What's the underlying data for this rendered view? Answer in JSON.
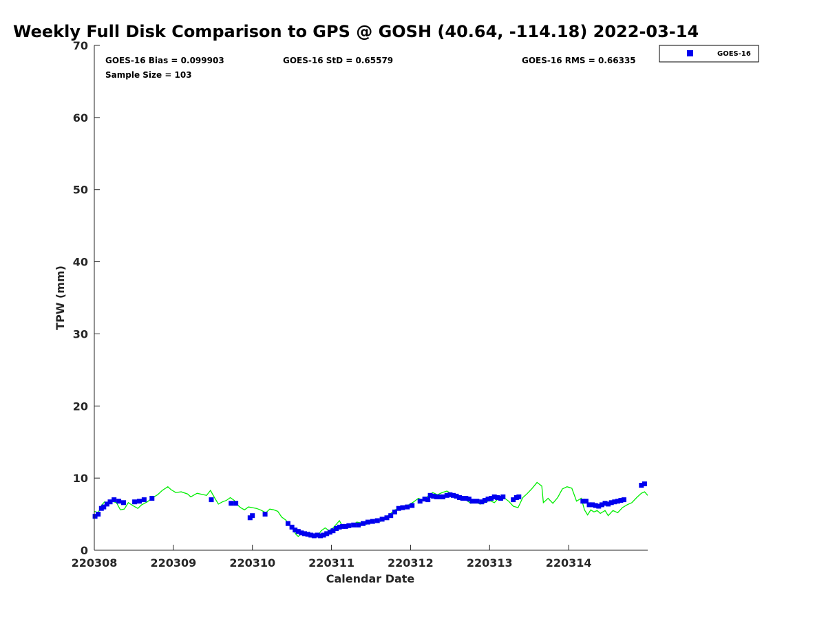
{
  "chart_data": {
    "type": "scatter",
    "title": "Weekly Full Disk Comparison to GPS @ GOSH (40.64, -114.18) 2022-03-14",
    "xlabel": "Calendar Date",
    "ylabel": "TPW (mm)",
    "xlim": [
      0,
      7
    ],
    "ylim": [
      0,
      70
    ],
    "grid": false,
    "x_ticks": [
      {
        "value": 0,
        "label": "220308"
      },
      {
        "value": 1,
        "label": "220309"
      },
      {
        "value": 2,
        "label": "220310"
      },
      {
        "value": 3,
        "label": "220311"
      },
      {
        "value": 4,
        "label": "220312"
      },
      {
        "value": 5,
        "label": "220313"
      },
      {
        "value": 6,
        "label": "220314"
      }
    ],
    "y_ticks": [
      0,
      10,
      20,
      30,
      40,
      50,
      60,
      70
    ],
    "stats": {
      "bias": "GOES-16 Bias = 0.099903",
      "std": "GOES-16 StD = 0.65579",
      "rms": "GOES-16 RMS = 0.66335",
      "sample": "Sample Size = 103"
    },
    "legend": {
      "position": "top-right, outside plot",
      "entries": [
        "GOES-16"
      ]
    },
    "colors": {
      "goes16": "#0000ee",
      "gps": "#00ee00"
    },
    "series": [
      {
        "name": "GOES-16",
        "marker": "square",
        "color": "#0000ee",
        "points": [
          [
            0.01,
            4.7
          ],
          [
            0.05,
            5.0
          ],
          [
            0.09,
            5.8
          ],
          [
            0.12,
            6.0
          ],
          [
            0.16,
            6.4
          ],
          [
            0.2,
            6.7
          ],
          [
            0.25,
            7.0
          ],
          [
            0.31,
            6.8
          ],
          [
            0.37,
            6.6
          ],
          [
            0.51,
            6.7
          ],
          [
            0.57,
            6.8
          ],
          [
            0.63,
            7.0
          ],
          [
            0.73,
            7.2
          ],
          [
            1.48,
            7.0
          ],
          [
            1.73,
            6.5
          ],
          [
            1.79,
            6.5
          ],
          [
            1.97,
            4.5
          ],
          [
            2.0,
            4.8
          ],
          [
            2.16,
            5.0
          ],
          [
            2.45,
            3.7
          ],
          [
            2.5,
            3.2
          ],
          [
            2.54,
            2.8
          ],
          [
            2.58,
            2.6
          ],
          [
            2.62,
            2.4
          ],
          [
            2.66,
            2.3
          ],
          [
            2.7,
            2.2
          ],
          [
            2.74,
            2.1
          ],
          [
            2.78,
            2.0
          ],
          [
            2.82,
            2.1
          ],
          [
            2.86,
            2.0
          ],
          [
            2.9,
            2.1
          ],
          [
            2.94,
            2.3
          ],
          [
            2.98,
            2.5
          ],
          [
            3.02,
            2.7
          ],
          [
            3.06,
            3.0
          ],
          [
            3.1,
            3.2
          ],
          [
            3.14,
            3.3
          ],
          [
            3.18,
            3.3
          ],
          [
            3.22,
            3.4
          ],
          [
            3.28,
            3.5
          ],
          [
            3.34,
            3.5
          ],
          [
            3.4,
            3.7
          ],
          [
            3.46,
            3.9
          ],
          [
            3.52,
            4.0
          ],
          [
            3.58,
            4.1
          ],
          [
            3.64,
            4.3
          ],
          [
            3.7,
            4.5
          ],
          [
            3.75,
            4.8
          ],
          [
            3.8,
            5.3
          ],
          [
            3.85,
            5.8
          ],
          [
            3.9,
            5.9
          ],
          [
            3.96,
            6.0
          ],
          [
            4.02,
            6.2
          ],
          [
            4.12,
            6.8
          ],
          [
            4.18,
            7.1
          ],
          [
            4.22,
            7.0
          ],
          [
            4.25,
            7.6
          ],
          [
            4.29,
            7.5
          ],
          [
            4.33,
            7.4
          ],
          [
            4.37,
            7.4
          ],
          [
            4.41,
            7.4
          ],
          [
            4.46,
            7.6
          ],
          [
            4.5,
            7.7
          ],
          [
            4.54,
            7.6
          ],
          [
            4.58,
            7.5
          ],
          [
            4.62,
            7.3
          ],
          [
            4.66,
            7.2
          ],
          [
            4.7,
            7.2
          ],
          [
            4.74,
            7.1
          ],
          [
            4.78,
            6.8
          ],
          [
            4.84,
            6.8
          ],
          [
            4.9,
            6.7
          ],
          [
            4.94,
            6.9
          ],
          [
            4.98,
            7.1
          ],
          [
            5.02,
            7.2
          ],
          [
            5.06,
            7.4
          ],
          [
            5.1,
            7.3
          ],
          [
            5.14,
            7.2
          ],
          [
            5.17,
            7.4
          ],
          [
            5.3,
            7.0
          ],
          [
            5.34,
            7.3
          ],
          [
            5.37,
            7.4
          ],
          [
            6.18,
            6.8
          ],
          [
            6.22,
            6.8
          ],
          [
            6.26,
            6.3
          ],
          [
            6.3,
            6.3
          ],
          [
            6.34,
            6.2
          ],
          [
            6.38,
            6.1
          ],
          [
            6.42,
            6.3
          ],
          [
            6.46,
            6.5
          ],
          [
            6.5,
            6.4
          ],
          [
            6.54,
            6.6
          ],
          [
            6.58,
            6.7
          ],
          [
            6.62,
            6.8
          ],
          [
            6.66,
            6.9
          ],
          [
            6.7,
            7.0
          ],
          [
            6.92,
            9.0
          ],
          [
            6.96,
            9.2
          ]
        ]
      },
      {
        "name": "GPS",
        "marker": "line",
        "color": "#00ee00",
        "points": [
          [
            0.0,
            5.4
          ],
          [
            0.05,
            5.2
          ],
          [
            0.09,
            6.2
          ],
          [
            0.13,
            6.7
          ],
          [
            0.17,
            6.6
          ],
          [
            0.22,
            6.8
          ],
          [
            0.28,
            6.6
          ],
          [
            0.33,
            5.6
          ],
          [
            0.38,
            5.7
          ],
          [
            0.43,
            6.6
          ],
          [
            0.5,
            6.1
          ],
          [
            0.55,
            5.8
          ],
          [
            0.6,
            6.3
          ],
          [
            0.67,
            6.7
          ],
          [
            0.74,
            7.3
          ],
          [
            0.8,
            7.7
          ],
          [
            0.86,
            8.3
          ],
          [
            0.93,
            8.8
          ],
          [
            0.97,
            8.4
          ],
          [
            1.03,
            8.0
          ],
          [
            1.1,
            8.1
          ],
          [
            1.18,
            7.8
          ],
          [
            1.22,
            7.4
          ],
          [
            1.3,
            7.9
          ],
          [
            1.38,
            7.7
          ],
          [
            1.42,
            7.6
          ],
          [
            1.47,
            8.3
          ],
          [
            1.52,
            7.3
          ],
          [
            1.57,
            6.4
          ],
          [
            1.62,
            6.7
          ],
          [
            1.67,
            6.9
          ],
          [
            1.72,
            7.3
          ],
          [
            1.77,
            6.9
          ],
          [
            1.8,
            6.4
          ],
          [
            1.85,
            5.9
          ],
          [
            1.9,
            5.6
          ],
          [
            1.95,
            6.0
          ],
          [
            2.0,
            5.9
          ],
          [
            2.05,
            5.8
          ],
          [
            2.1,
            5.6
          ],
          [
            2.17,
            5.2
          ],
          [
            2.22,
            5.7
          ],
          [
            2.27,
            5.6
          ],
          [
            2.32,
            5.4
          ],
          [
            2.37,
            4.6
          ],
          [
            2.42,
            4.2
          ],
          [
            2.47,
            3.5
          ],
          [
            2.52,
            2.8
          ],
          [
            2.55,
            2.2
          ],
          [
            2.58,
            1.9
          ],
          [
            2.62,
            2.4
          ],
          [
            2.67,
            2.2
          ],
          [
            2.72,
            2.5
          ],
          [
            2.77,
            1.9
          ],
          [
            2.82,
            1.9
          ],
          [
            2.87,
            2.7
          ],
          [
            2.92,
            3.1
          ],
          [
            2.97,
            2.7
          ],
          [
            3.02,
            3.1
          ],
          [
            3.07,
            3.7
          ],
          [
            3.1,
            4.1
          ],
          [
            3.14,
            3.3
          ],
          [
            3.2,
            3.6
          ],
          [
            3.26,
            3.4
          ],
          [
            3.32,
            3.9
          ],
          [
            3.38,
            3.8
          ],
          [
            3.44,
            3.6
          ],
          [
            3.5,
            4.0
          ],
          [
            3.56,
            4.2
          ],
          [
            3.62,
            4.0
          ],
          [
            3.68,
            4.5
          ],
          [
            3.74,
            5.0
          ],
          [
            3.8,
            5.6
          ],
          [
            3.86,
            5.8
          ],
          [
            3.92,
            6.1
          ],
          [
            3.98,
            6.3
          ],
          [
            4.04,
            6.7
          ],
          [
            4.1,
            7.2
          ],
          [
            4.16,
            6.9
          ],
          [
            4.22,
            7.5
          ],
          [
            4.28,
            8.0
          ],
          [
            4.34,
            7.7
          ],
          [
            4.4,
            8.0
          ],
          [
            4.46,
            8.2
          ],
          [
            4.52,
            7.8
          ],
          [
            4.58,
            7.5
          ],
          [
            4.64,
            7.2
          ],
          [
            4.7,
            7.0
          ],
          [
            4.76,
            6.5
          ],
          [
            4.82,
            6.7
          ],
          [
            4.88,
            6.4
          ],
          [
            4.94,
            6.6
          ],
          [
            5.0,
            6.9
          ],
          [
            5.06,
            6.6
          ],
          [
            5.12,
            7.3
          ],
          [
            5.18,
            7.3
          ],
          [
            5.24,
            6.8
          ],
          [
            5.3,
            6.1
          ],
          [
            5.36,
            5.9
          ],
          [
            5.42,
            7.3
          ],
          [
            5.48,
            7.9
          ],
          [
            5.54,
            8.6
          ],
          [
            5.6,
            9.4
          ],
          [
            5.66,
            8.9
          ],
          [
            5.68,
            6.6
          ],
          [
            5.74,
            7.2
          ],
          [
            5.8,
            6.5
          ],
          [
            5.86,
            7.3
          ],
          [
            5.92,
            8.5
          ],
          [
            5.98,
            8.8
          ],
          [
            6.04,
            8.6
          ],
          [
            6.1,
            6.8
          ],
          [
            6.16,
            7.2
          ],
          [
            6.2,
            5.6
          ],
          [
            6.24,
            4.9
          ],
          [
            6.28,
            5.6
          ],
          [
            6.32,
            5.3
          ],
          [
            6.36,
            5.5
          ],
          [
            6.4,
            5.1
          ],
          [
            6.46,
            5.5
          ],
          [
            6.5,
            4.8
          ],
          [
            6.56,
            5.5
          ],
          [
            6.62,
            5.2
          ],
          [
            6.68,
            5.9
          ],
          [
            6.74,
            6.3
          ],
          [
            6.8,
            6.6
          ],
          [
            6.86,
            7.3
          ],
          [
            6.92,
            7.9
          ],
          [
            6.96,
            8.1
          ],
          [
            7.0,
            7.6
          ]
        ]
      }
    ]
  }
}
